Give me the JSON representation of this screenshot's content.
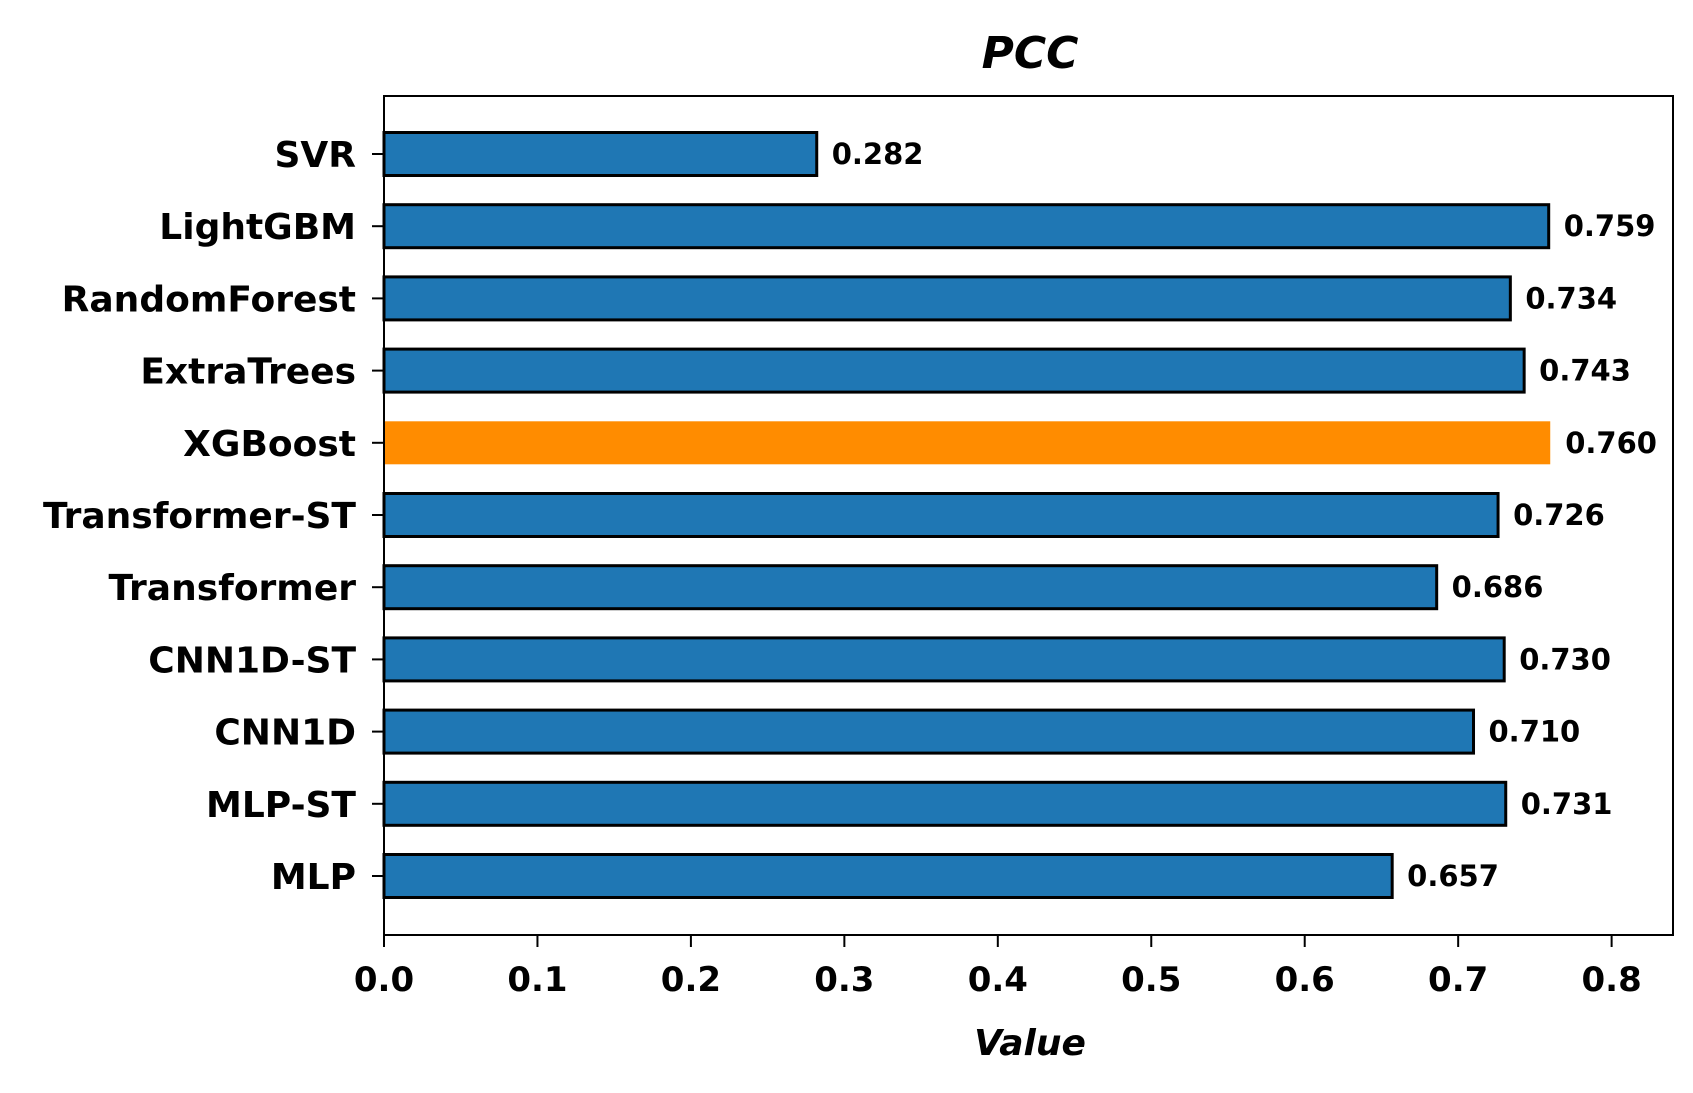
{
  "chart_data": {
    "type": "bar",
    "orientation": "horizontal",
    "title": "PCC",
    "xlabel": "Value",
    "ylabel": "",
    "categories": [
      "SVR",
      "LightGBM",
      "RandomForest",
      "ExtraTrees",
      "XGBoost",
      "Transformer-ST",
      "Transformer",
      "CNN1D-ST",
      "CNN1D",
      "MLP-ST",
      "MLP"
    ],
    "values": [
      0.282,
      0.759,
      0.734,
      0.743,
      0.76,
      0.726,
      0.686,
      0.73,
      0.71,
      0.731,
      0.657
    ],
    "value_labels": [
      "0.282",
      "0.759",
      "0.734",
      "0.743",
      "0.760",
      "0.726",
      "0.686",
      "0.730",
      "0.710",
      "0.731",
      "0.657"
    ],
    "highlight_index": 4,
    "xlim": [
      0,
      0.84
    ],
    "xticks": [
      0.0,
      0.1,
      0.2,
      0.3,
      0.4,
      0.5,
      0.6,
      0.7,
      0.8
    ],
    "xtick_labels": [
      "0.0",
      "0.1",
      "0.2",
      "0.3",
      "0.4",
      "0.5",
      "0.6",
      "0.7",
      "0.8"
    ],
    "grid": false,
    "colors": {
      "bar": "#1f77b4",
      "highlight": "#ff8c00",
      "edge": "#000000"
    }
  }
}
